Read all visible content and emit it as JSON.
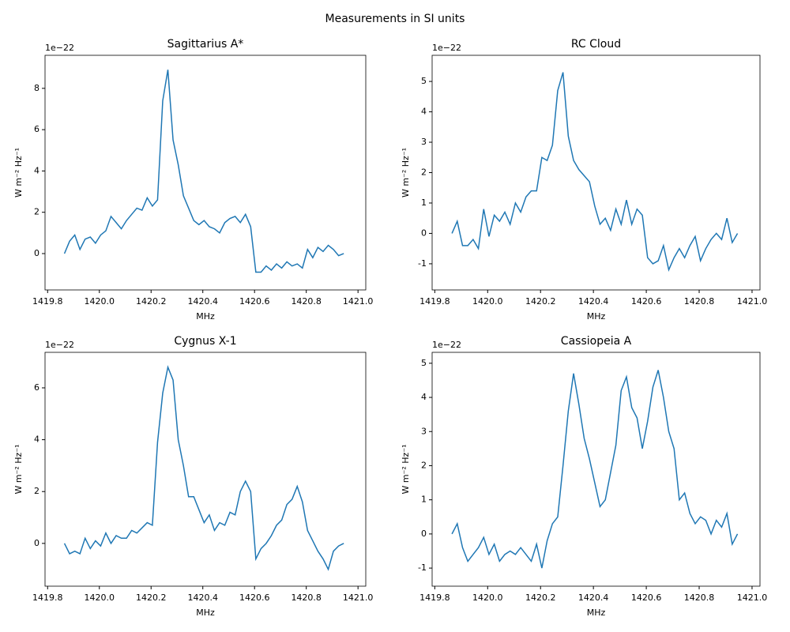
{
  "title": "Measurements in SI units",
  "chart_data": [
    {
      "type": "line",
      "title": "Sagittarius A*",
      "xlabel": "MHz",
      "ylabel": "W m⁻² Hz⁻¹",
      "offset_text": "1e−22",
      "color": "#1f77b4",
      "x": [
        1419.865,
        1419.885,
        1419.905,
        1419.925,
        1419.945,
        1419.965,
        1419.985,
        1420.005,
        1420.025,
        1420.045,
        1420.065,
        1420.085,
        1420.105,
        1420.125,
        1420.145,
        1420.165,
        1420.185,
        1420.205,
        1420.225,
        1420.245,
        1420.265,
        1420.285,
        1420.305,
        1420.325,
        1420.345,
        1420.365,
        1420.385,
        1420.405,
        1420.425,
        1420.445,
        1420.465,
        1420.485,
        1420.505,
        1420.525,
        1420.545,
        1420.565,
        1420.585,
        1420.605,
        1420.625,
        1420.645,
        1420.665,
        1420.685,
        1420.705,
        1420.725,
        1420.745,
        1420.765,
        1420.785,
        1420.805,
        1420.825,
        1420.845,
        1420.865,
        1420.885,
        1420.905,
        1420.925,
        1420.945
      ],
      "values": [
        0,
        0.6,
        0.9,
        0.2,
        0.7,
        0.8,
        0.5,
        0.9,
        1.1,
        1.8,
        1.5,
        1.2,
        1.6,
        1.9,
        2.2,
        2.1,
        2.7,
        2.3,
        2.6,
        7.4,
        8.9,
        5.5,
        4.3,
        2.8,
        2.2,
        1.6,
        1.4,
        1.6,
        1.3,
        1.2,
        1.0,
        1.5,
        1.7,
        1.8,
        1.5,
        1.9,
        1.3,
        -0.9,
        -0.9,
        -0.6,
        -0.8,
        -0.5,
        -0.7,
        -0.4,
        -0.6,
        -0.5,
        -0.7,
        0.2,
        -0.2,
        0.3,
        0.1,
        0.4,
        0.2,
        -0.1,
        0
      ],
      "xlim": [
        1419.79,
        1421.03
      ],
      "ylim": [
        -1.76,
        9.6
      ],
      "xticks": [
        1419.8,
        {
          "value": 1420,
          "label": "1420.0"
        },
        1420.2,
        1420.4,
        1420.6,
        1420.8,
        {
          "value": 1421,
          "label": "1421.0"
        }
      ],
      "yticks": [
        0,
        2,
        4,
        6,
        8
      ]
    },
    {
      "type": "line",
      "title": "RC Cloud",
      "xlabel": "MHz",
      "ylabel": "W m⁻² Hz⁻¹",
      "offset_text": "1e−22",
      "color": "#1f77b4",
      "x": [
        1419.865,
        1419.885,
        1419.905,
        1419.925,
        1419.945,
        1419.965,
        1419.985,
        1420.005,
        1420.025,
        1420.045,
        1420.065,
        1420.085,
        1420.105,
        1420.125,
        1420.145,
        1420.165,
        1420.185,
        1420.205,
        1420.225,
        1420.245,
        1420.265,
        1420.285,
        1420.305,
        1420.325,
        1420.345,
        1420.365,
        1420.385,
        1420.405,
        1420.425,
        1420.445,
        1420.465,
        1420.485,
        1420.505,
        1420.525,
        1420.545,
        1420.565,
        1420.585,
        1420.605,
        1420.625,
        1420.645,
        1420.665,
        1420.685,
        1420.705,
        1420.725,
        1420.745,
        1420.765,
        1420.785,
        1420.805,
        1420.825,
        1420.845,
        1420.865,
        1420.885,
        1420.905,
        1420.925,
        1420.945
      ],
      "values": [
        0,
        0.4,
        -0.4,
        -0.4,
        -0.2,
        -0.5,
        0.8,
        -0.1,
        0.6,
        0.4,
        0.7,
        0.3,
        1.0,
        0.7,
        1.2,
        1.4,
        1.4,
        2.5,
        2.4,
        2.9,
        4.7,
        5.3,
        3.2,
        2.4,
        2.1,
        1.9,
        1.7,
        0.9,
        0.3,
        0.5,
        0.1,
        0.8,
        0.3,
        1.1,
        0.3,
        0.8,
        0.6,
        -0.8,
        -1.0,
        -0.9,
        -0.4,
        -1.2,
        -0.8,
        -0.5,
        -0.8,
        -0.4,
        -0.1,
        -0.9,
        -0.5,
        -0.2,
        0,
        -0.2,
        0.5,
        -0.3,
        0
      ],
      "xlim": [
        1419.79,
        1421.03
      ],
      "ylim": [
        -1.86,
        5.86
      ],
      "xticks": [
        1419.8,
        {
          "value": 1420,
          "label": "1420.0"
        },
        1420.2,
        1420.4,
        1420.6,
        1420.8,
        {
          "value": 1421,
          "label": "1421.0"
        }
      ],
      "yticks": [
        -1,
        0,
        1,
        2,
        3,
        4,
        5
      ]
    },
    {
      "type": "line",
      "title": "Cygnus X-1",
      "xlabel": "MHz",
      "ylabel": "W m⁻² Hz⁻¹",
      "offset_text": "1e−22",
      "color": "#1f77b4",
      "x": [
        1419.865,
        1419.885,
        1419.905,
        1419.925,
        1419.945,
        1419.965,
        1419.985,
        1420.005,
        1420.025,
        1420.045,
        1420.065,
        1420.085,
        1420.105,
        1420.125,
        1420.145,
        1420.165,
        1420.185,
        1420.205,
        1420.225,
        1420.245,
        1420.265,
        1420.285,
        1420.305,
        1420.325,
        1420.345,
        1420.365,
        1420.385,
        1420.405,
        1420.425,
        1420.445,
        1420.465,
        1420.485,
        1420.505,
        1420.525,
        1420.545,
        1420.565,
        1420.585,
        1420.605,
        1420.625,
        1420.645,
        1420.665,
        1420.685,
        1420.705,
        1420.725,
        1420.745,
        1420.765,
        1420.785,
        1420.805,
        1420.825,
        1420.845,
        1420.865,
        1420.885,
        1420.905,
        1420.925,
        1420.945
      ],
      "values": [
        0,
        -0.4,
        -0.3,
        -0.4,
        0.2,
        -0.2,
        0.1,
        -0.1,
        0.4,
        0,
        0.3,
        0.2,
        0.2,
        0.5,
        0.4,
        0.6,
        0.8,
        0.7,
        3.9,
        5.8,
        6.8,
        6.3,
        4.0,
        3.0,
        1.8,
        1.8,
        1.3,
        0.8,
        1.1,
        0.5,
        0.8,
        0.7,
        1.2,
        1.1,
        2.0,
        2.4,
        2.0,
        -0.6,
        -0.2,
        0,
        0.3,
        0.7,
        0.9,
        1.5,
        1.7,
        2.2,
        1.6,
        0.5,
        0.1,
        -0.3,
        -0.6,
        -1.0,
        -0.3,
        -0.1,
        0
      ],
      "xlim": [
        1419.79,
        1421.03
      ],
      "ylim": [
        -1.65,
        7.37
      ],
      "xticks": [
        1419.8,
        {
          "value": 1420,
          "label": "1420.0"
        },
        1420.2,
        1420.4,
        1420.6,
        1420.8,
        {
          "value": 1421,
          "label": "1421.0"
        }
      ],
      "yticks": [
        0,
        2,
        4,
        6
      ]
    },
    {
      "type": "line",
      "title": "Cassiopeia A",
      "xlabel": "MHz",
      "ylabel": "W m⁻² Hz⁻¹",
      "offset_text": "1e−22",
      "color": "#1f77b4",
      "x": [
        1419.865,
        1419.885,
        1419.905,
        1419.925,
        1419.945,
        1419.965,
        1419.985,
        1420.005,
        1420.025,
        1420.045,
        1420.065,
        1420.085,
        1420.105,
        1420.125,
        1420.145,
        1420.165,
        1420.185,
        1420.205,
        1420.225,
        1420.245,
        1420.265,
        1420.285,
        1420.305,
        1420.325,
        1420.345,
        1420.365,
        1420.385,
        1420.405,
        1420.425,
        1420.445,
        1420.465,
        1420.485,
        1420.505,
        1420.525,
        1420.545,
        1420.565,
        1420.585,
        1420.605,
        1420.625,
        1420.645,
        1420.665,
        1420.685,
        1420.705,
        1420.725,
        1420.745,
        1420.765,
        1420.785,
        1420.805,
        1420.825,
        1420.845,
        1420.865,
        1420.885,
        1420.905,
        1420.925,
        1420.945
      ],
      "values": [
        0,
        0.3,
        -0.4,
        -0.8,
        -0.6,
        -0.4,
        -0.1,
        -0.6,
        -0.3,
        -0.8,
        -0.6,
        -0.5,
        -0.6,
        -0.4,
        -0.6,
        -0.8,
        -0.3,
        -1.0,
        -0.2,
        0.3,
        0.5,
        2.0,
        3.6,
        4.7,
        3.8,
        2.8,
        2.2,
        1.5,
        0.8,
        1.0,
        1.8,
        2.6,
        4.2,
        4.6,
        3.7,
        3.4,
        2.5,
        3.3,
        4.3,
        4.8,
        4.0,
        3.0,
        2.5,
        1.0,
        1.2,
        0.6,
        0.3,
        0.5,
        0.4,
        0,
        0.4,
        0.2,
        0.6,
        -0.3,
        0
      ],
      "xlim": [
        1419.79,
        1421.03
      ],
      "ylim": [
        -1.53,
        5.32
      ],
      "xticks": [
        1419.8,
        {
          "value": 1420,
          "label": "1420.0"
        },
        1420.2,
        1420.4,
        1420.6,
        1420.8,
        {
          "value": 1421,
          "label": "1421.0"
        }
      ],
      "yticks": [
        -1,
        0,
        1,
        2,
        3,
        4,
        5
      ]
    }
  ]
}
